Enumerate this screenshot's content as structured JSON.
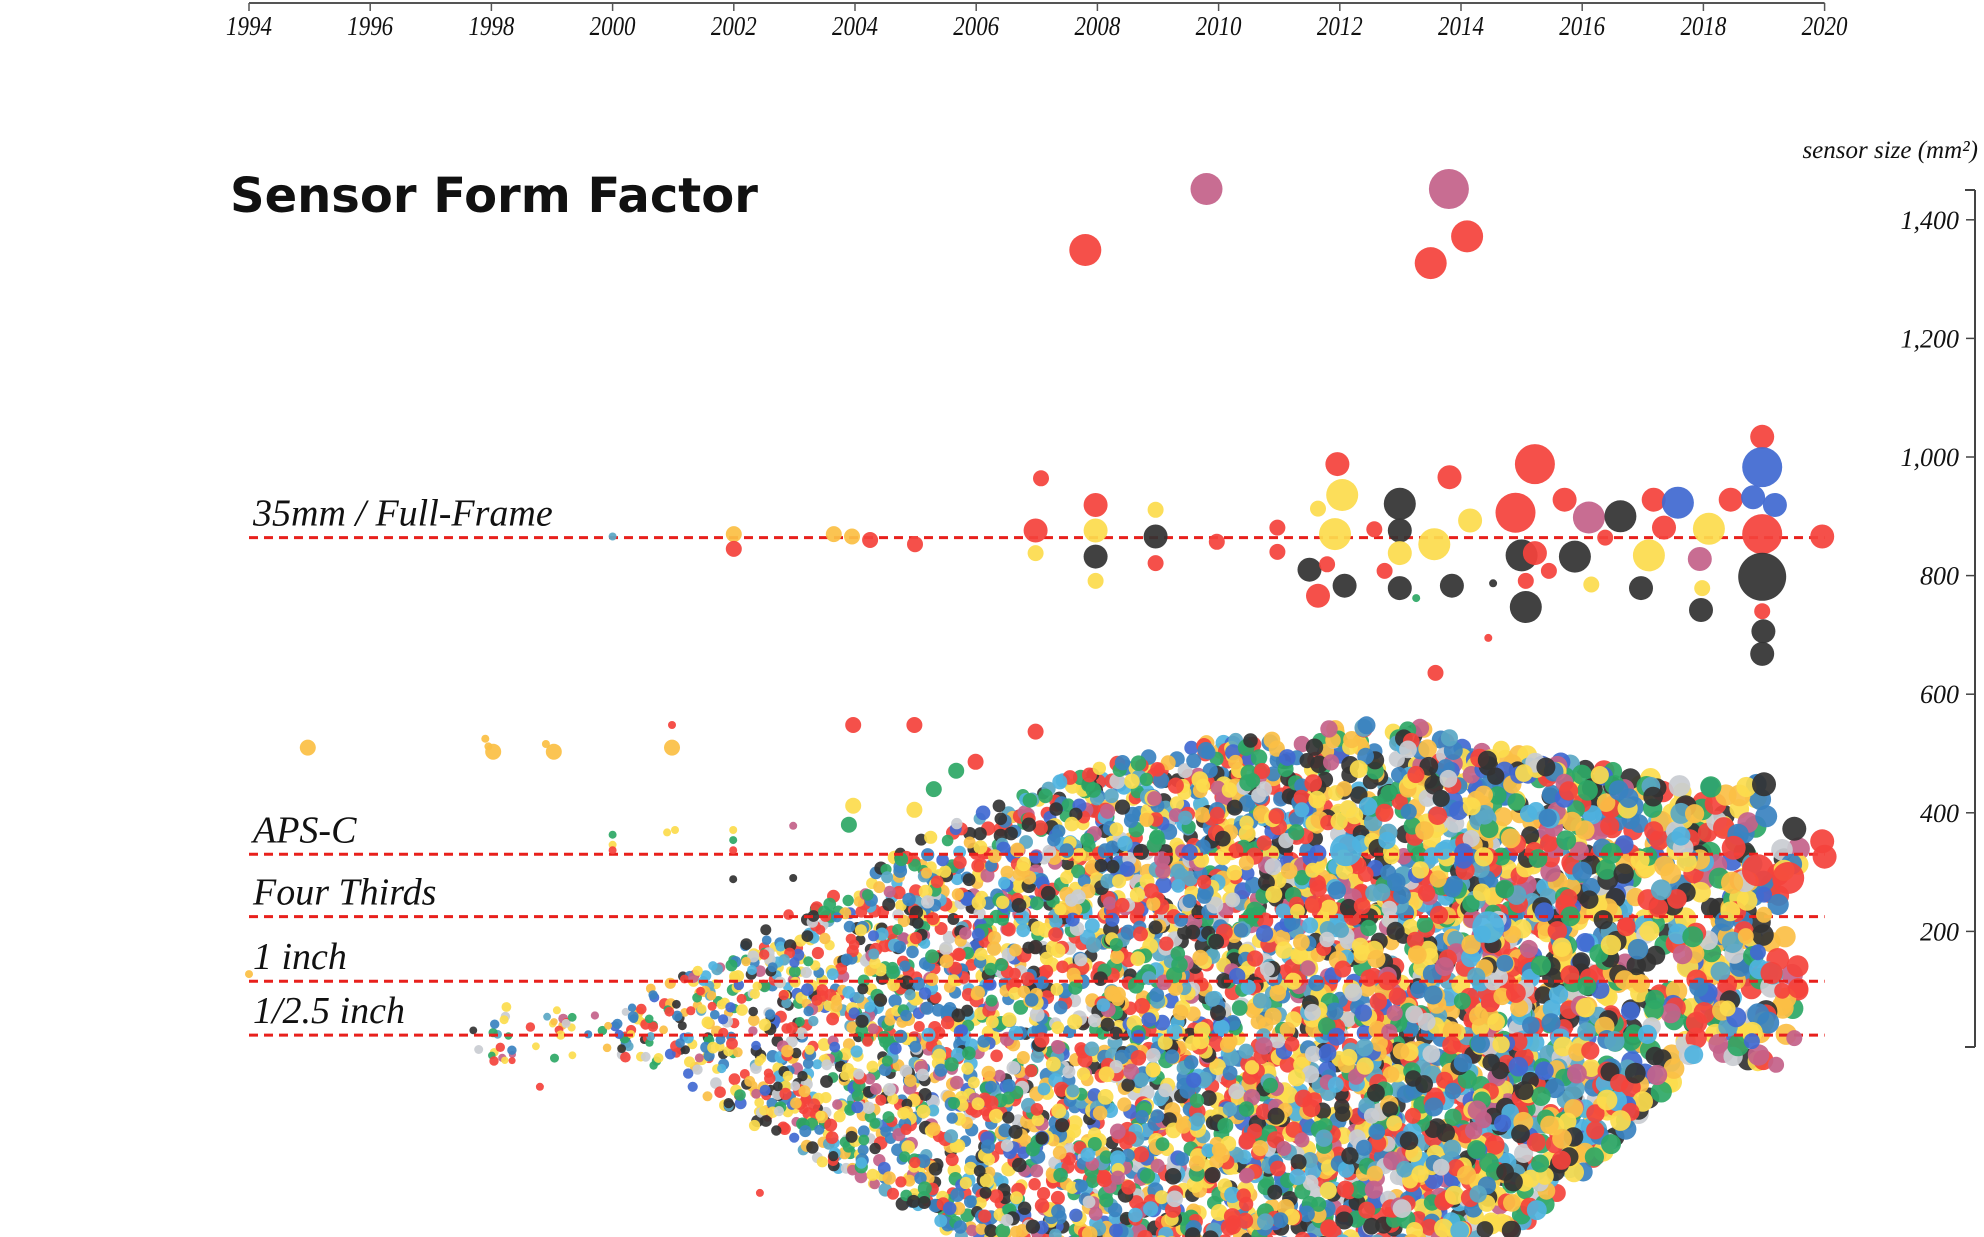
{
  "chart_data": {
    "type": "scatter",
    "title": "Sensor Form Factor",
    "ylabel": "sensor size (mm²)",
    "xlabel": "",
    "xlim": [
      1994,
      2020
    ],
    "ylim": [
      0,
      1450
    ],
    "x_ticks": [
      "1994",
      "1996",
      "1998",
      "2000",
      "2002",
      "2004",
      "2006",
      "2008",
      "2010",
      "2012",
      "2014",
      "2016",
      "2018",
      "2020"
    ],
    "y_ticks": [
      {
        "value": 200,
        "label": "200"
      },
      {
        "value": 400,
        "label": "400"
      },
      {
        "value": 600,
        "label": "600"
      },
      {
        "value": 800,
        "label": "800"
      },
      {
        "value": 1000,
        "label": "1,000"
      },
      {
        "value": 1200,
        "label": "1,200"
      },
      {
        "value": 1400,
        "label": "1,400"
      }
    ],
    "x_axis_position": "top",
    "y_axis_position": "right",
    "grid": false,
    "reference_lines": [
      {
        "label": "35mm / Full-Frame",
        "value": 864
      },
      {
        "label": "APS-C",
        "value": 330
      },
      {
        "label": "Four Thirds",
        "value": 225
      },
      {
        "label": "1 inch",
        "value": 116
      },
      {
        "label": "1/2.5 inch",
        "value": 25
      }
    ],
    "reference_line_color": "#e8201c",
    "colors": {
      "red": "#f4433c",
      "orange": "#fbbf45",
      "yellow": "#fcdc4d",
      "green": "#2ea866",
      "blue": "#4169d1",
      "steel": "#3a82c0",
      "dark": "#333333",
      "pink": "#c4628a",
      "teal": "#5aa7c4",
      "lightblue": "#4fb3e0",
      "gray": "#c9ccd1"
    },
    "points": [
      [
        2000.0,
        866,
        "teal",
        1
      ],
      [
        2002.0,
        870,
        "orange",
        2
      ],
      [
        2002.0,
        845,
        "red",
        2
      ],
      [
        2003.65,
        870,
        "orange",
        2
      ],
      [
        2003.95,
        866,
        "orange",
        2
      ],
      [
        2004.25,
        860,
        "red",
        2
      ],
      [
        2004.99,
        853,
        "red",
        2
      ],
      [
        2007.07,
        964,
        "red",
        2
      ],
      [
        2006.98,
        876,
        "red",
        3
      ],
      [
        2006.98,
        838,
        "yellow",
        2
      ],
      [
        2007.97,
        919,
        "red",
        3
      ],
      [
        2007.97,
        876,
        "yellow",
        3
      ],
      [
        2007.97,
        832,
        "dark",
        3
      ],
      [
        2007.97,
        791,
        "yellow",
        2
      ],
      [
        2008.96,
        911,
        "yellow",
        2
      ],
      [
        2008.96,
        866,
        "dark",
        3
      ],
      [
        2008.96,
        821,
        "red",
        2
      ],
      [
        2009.97,
        857,
        "red",
        2
      ],
      [
        2010.97,
        881,
        "red",
        2
      ],
      [
        2010.97,
        840,
        "red",
        2
      ],
      [
        2011.96,
        988,
        "red",
        3
      ],
      [
        2012.04,
        936,
        "yellow",
        4
      ],
      [
        2011.92,
        870,
        "yellow",
        4
      ],
      [
        2011.64,
        913,
        "yellow",
        2
      ],
      [
        2011.5,
        810,
        "dark",
        3
      ],
      [
        2011.64,
        766,
        "red",
        3
      ],
      [
        2012.08,
        783,
        "dark",
        3
      ],
      [
        2011.79,
        819,
        "red",
        2
      ],
      [
        2012.99,
        921,
        "dark",
        4
      ],
      [
        2012.99,
        876,
        "dark",
        3
      ],
      [
        2012.99,
        838,
        "yellow",
        3
      ],
      [
        2012.99,
        779,
        "dark",
        3
      ],
      [
        2013.26,
        762,
        "green",
        1
      ],
      [
        2012.57,
        878,
        "red",
        2
      ],
      [
        2012.74,
        808,
        "red",
        2
      ],
      [
        2013.56,
        853,
        "yellow",
        4
      ],
      [
        2013.58,
        636,
        "red",
        2
      ],
      [
        2013.81,
        966,
        "red",
        3
      ],
      [
        2014.15,
        893,
        "yellow",
        3
      ],
      [
        2013.85,
        783,
        "dark",
        3
      ],
      [
        2014.53,
        787,
        "dark",
        1
      ],
      [
        2014.45,
        695,
        "red",
        1
      ],
      [
        2014.9,
        906,
        "red",
        5
      ],
      [
        2015.22,
        988,
        "red",
        5
      ],
      [
        2015.0,
        834,
        "dark",
        4
      ],
      [
        2015.07,
        747,
        "dark",
        4
      ],
      [
        2015.22,
        838,
        "red",
        3
      ],
      [
        2015.07,
        791,
        "red",
        2
      ],
      [
        2015.45,
        808,
        "red",
        2
      ],
      [
        2015.71,
        928,
        "red",
        3
      ],
      [
        2015.88,
        832,
        "dark",
        4
      ],
      [
        2016.11,
        898,
        "pink",
        4
      ],
      [
        2016.15,
        785,
        "yellow",
        2
      ],
      [
        2016.63,
        900,
        "dark",
        4
      ],
      [
        2016.38,
        864,
        "red",
        2
      ],
      [
        2017.1,
        834,
        "yellow",
        4
      ],
      [
        2016.97,
        779,
        "dark",
        3
      ],
      [
        2017.18,
        928,
        "red",
        3
      ],
      [
        2017.58,
        923,
        "blue",
        4
      ],
      [
        2017.35,
        881,
        "red",
        3
      ],
      [
        2018.09,
        879,
        "yellow",
        4
      ],
      [
        2017.94,
        828,
        "pink",
        3
      ],
      [
        2017.98,
        779,
        "yellow",
        2
      ],
      [
        2017.96,
        742,
        "dark",
        3
      ],
      [
        2018.45,
        928,
        "red",
        3
      ],
      [
        2018.97,
        1034,
        "red",
        3
      ],
      [
        2018.97,
        983,
        "blue",
        5
      ],
      [
        2018.82,
        932,
        "blue",
        3
      ],
      [
        2019.18,
        919,
        "blue",
        3
      ],
      [
        2018.97,
        870,
        "red",
        5
      ],
      [
        2018.97,
        798,
        "dark",
        6
      ],
      [
        2018.97,
        740,
        "red",
        2
      ],
      [
        2018.99,
        706,
        "dark",
        3
      ],
      [
        2018.97,
        668,
        "dark",
        3
      ],
      [
        2019.96,
        866,
        "red",
        3
      ],
      [
        2009.8,
        1452,
        "pink",
        4
      ],
      [
        2013.8,
        1452,
        "pink",
        5
      ],
      [
        2007.8,
        1349,
        "red",
        4
      ],
      [
        2014.1,
        1372,
        "red",
        4
      ],
      [
        2013.5,
        1327,
        "red",
        4
      ],
      [
        1994.97,
        510,
        "orange",
        2
      ],
      [
        1997.9,
        525,
        "orange",
        1
      ],
      [
        1997.95,
        512,
        "orange",
        1
      ],
      [
        1998.03,
        503,
        "orange",
        2
      ],
      [
        1998.9,
        516,
        "orange",
        1
      ],
      [
        1999.03,
        503,
        "orange",
        2
      ],
      [
        2000.98,
        548,
        "red",
        1
      ],
      [
        2000.98,
        510,
        "orange",
        2
      ],
      [
        2003.97,
        548,
        "red",
        2
      ],
      [
        2004.98,
        548,
        "red",
        2
      ],
      [
        2006.98,
        537,
        "red",
        2
      ],
      [
        2000.0,
        363,
        "green",
        1
      ],
      [
        2000.0,
        346,
        "yellow",
        1
      ],
      [
        2000.0,
        337,
        "red",
        1
      ],
      [
        2000.9,
        367,
        "yellow",
        1
      ],
      [
        2001.03,
        371,
        "yellow",
        1
      ],
      [
        2001.99,
        371,
        "yellow",
        1
      ],
      [
        2001.99,
        354,
        "green",
        1
      ],
      [
        2001.99,
        337,
        "red",
        1
      ],
      [
        2001.99,
        288,
        "dark",
        1
      ],
      [
        2002.98,
        378,
        "pink",
        1
      ],
      [
        2002.98,
        290,
        "dark",
        1
      ],
      [
        2003.97,
        412,
        "yellow",
        2
      ],
      [
        2003.9,
        380,
        "green",
        2
      ],
      [
        2004.98,
        405,
        "yellow",
        2
      ],
      [
        2005.99,
        486,
        "red",
        2
      ],
      [
        2005.67,
        471,
        "green",
        2
      ],
      [
        2005.3,
        440,
        "green",
        2
      ],
      [
        2019.0,
        448,
        "dark",
        3
      ],
      [
        2019.5,
        373,
        "dark",
        3
      ],
      [
        2019.96,
        352,
        "red",
        3
      ],
      [
        2020.0,
        326,
        "red",
        3
      ],
      [
        2018.5,
        341,
        "red",
        3
      ],
      [
        2018.9,
        303,
        "red",
        4
      ],
      [
        2019.4,
        290,
        "red",
        4
      ],
      [
        2019.0,
        228,
        "orange",
        2
      ],
      [
        2018.7,
        192,
        "orange",
        2
      ],
      [
        2019.0,
        262,
        "blue",
        2
      ],
      [
        2018.9,
        165,
        "blue",
        2
      ],
      [
        2019.3,
        100,
        "red",
        2
      ],
      [
        2019.5,
        20,
        "pink",
        2
      ],
      [
        2018.4,
        70,
        "yellow",
        2
      ],
      [
        2018.8,
        15,
        "blue",
        2
      ],
      [
        2019.2,
        -25,
        "pink",
        2
      ],
      [
        1994.0,
        128,
        "orange",
        1
      ],
      [
        2012.1,
        337,
        "lightblue",
        4
      ],
      [
        2014.45,
        207,
        "lightblue",
        4
      ],
      [
        2002.43,
        -241,
        "red",
        1
      ],
      [
        1998.8,
        -62,
        "red",
        1
      ]
    ],
    "cloud_envelope": [
      {
        "year": 1997.7,
        "upper": 75,
        "lower": -20
      },
      {
        "year": 1998.9,
        "upper": 70,
        "lower": -21
      },
      {
        "year": 2000,
        "upper": 85,
        "lower": -10
      },
      {
        "year": 2001,
        "upper": 117,
        "lower": -43
      },
      {
        "year": 2002,
        "upper": 171,
        "lower": -107
      },
      {
        "year": 2003,
        "upper": 235,
        "lower": -171
      },
      {
        "year": 2004,
        "upper": 277,
        "lower": -213
      },
      {
        "year": 2005,
        "upper": 352,
        "lower": -277
      },
      {
        "year": 2006,
        "upper": 405,
        "lower": -330
      },
      {
        "year": 2008,
        "upper": 480,
        "lower": -330
      },
      {
        "year": 2010,
        "upper": 522,
        "lower": -330
      },
      {
        "year": 2012,
        "upper": 544,
        "lower": -330
      },
      {
        "year": 2013,
        "upper": 555,
        "lower": -330
      },
      {
        "year": 2014,
        "upper": 522,
        "lower": -330
      },
      {
        "year": 2015,
        "upper": 501,
        "lower": -300
      },
      {
        "year": 2016,
        "upper": 480,
        "lower": -213
      },
      {
        "year": 2017,
        "upper": 469,
        "lower": -107
      },
      {
        "year": 2018,
        "upper": 458,
        "lower": 0
      },
      {
        "year": 2019,
        "upper": 448,
        "lower": -43
      },
      {
        "year": 2019.6,
        "upper": 373,
        "lower": 64
      }
    ]
  }
}
